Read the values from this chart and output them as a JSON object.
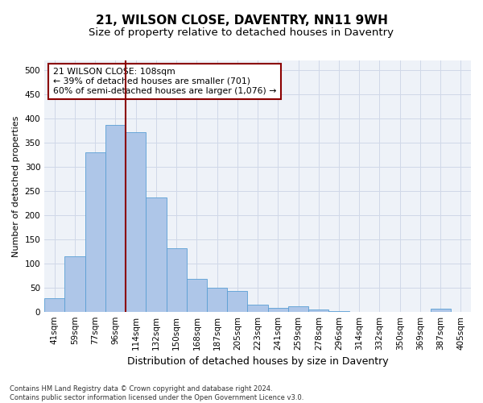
{
  "title": "21, WILSON CLOSE, DAVENTRY, NN11 9WH",
  "subtitle": "Size of property relative to detached houses in Daventry",
  "xlabel": "Distribution of detached houses by size in Daventry",
  "ylabel": "Number of detached properties",
  "categories": [
    "41sqm",
    "59sqm",
    "77sqm",
    "96sqm",
    "114sqm",
    "132sqm",
    "150sqm",
    "168sqm",
    "187sqm",
    "205sqm",
    "223sqm",
    "241sqm",
    "259sqm",
    "278sqm",
    "296sqm",
    "314sqm",
    "332sqm",
    "350sqm",
    "369sqm",
    "387sqm",
    "405sqm"
  ],
  "values": [
    27,
    115,
    330,
    387,
    372,
    236,
    132,
    68,
    50,
    43,
    15,
    8,
    11,
    4,
    1,
    0,
    0,
    0,
    0,
    6,
    0
  ],
  "bar_color": "#aec6e8",
  "bar_edge_color": "#5a9fd4",
  "vline_pos": 3.5,
  "vline_color": "#8b0000",
  "annotation_line1": "21 WILSON CLOSE: 108sqm",
  "annotation_line2": "← 39% of detached houses are smaller (701)",
  "annotation_line3": "60% of semi-detached houses are larger (1,076) →",
  "annotation_box_color": "#ffffff",
  "annotation_box_edge": "#8b0000",
  "ylim": [
    0,
    520
  ],
  "yticks": [
    0,
    50,
    100,
    150,
    200,
    250,
    300,
    350,
    400,
    450,
    500
  ],
  "grid_color": "#d0d8e8",
  "background_color": "#eef2f8",
  "footer_line1": "Contains HM Land Registry data © Crown copyright and database right 2024.",
  "footer_line2": "Contains public sector information licensed under the Open Government Licence v3.0.",
  "title_fontsize": 11,
  "subtitle_fontsize": 9.5,
  "xlabel_fontsize": 9,
  "ylabel_fontsize": 8,
  "tick_fontsize": 7.5,
  "annotation_fontsize": 7.8,
  "footer_fontsize": 6.0
}
